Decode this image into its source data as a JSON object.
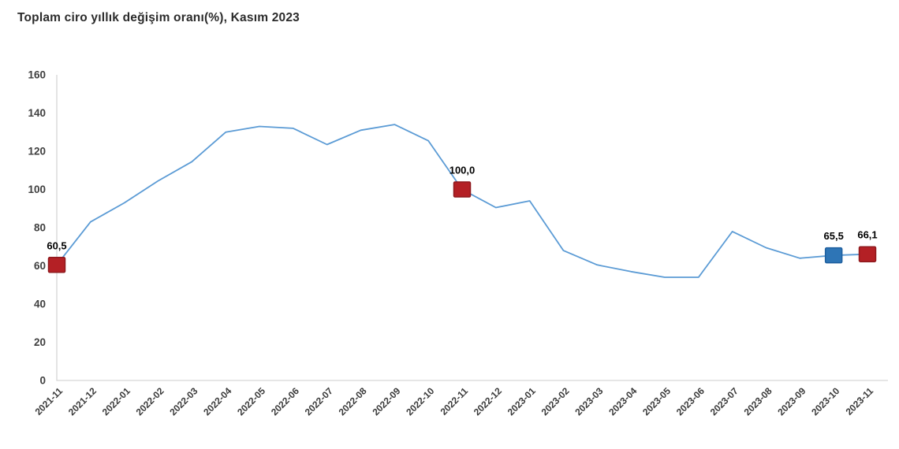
{
  "title": "Toplam ciro yıllık değişim oranı(%), Kasım 2023",
  "chart_data": {
    "type": "line",
    "title": "Toplam ciro yıllık değişim oranı(%), Kasım 2023",
    "xlabel": "",
    "ylabel": "",
    "x": [
      "2021-11",
      "2021-12",
      "2022-01",
      "2022-02",
      "2022-03",
      "2022-04",
      "2022-05",
      "2022-06",
      "2022-07",
      "2022-08",
      "2022-09",
      "2022-10",
      "2022-11",
      "2022-12",
      "2023-01",
      "2023-02",
      "2023-03",
      "2023-04",
      "2023-05",
      "2023-06",
      "2023-07",
      "2023-08",
      "2023-09",
      "2023-10",
      "2023-11"
    ],
    "values": [
      60.5,
      83.0,
      93.0,
      104.5,
      114.5,
      130.0,
      133.0,
      132.0,
      123.5,
      131.0,
      134.0,
      125.5,
      100.0,
      90.5,
      94.0,
      68.0,
      60.5,
      57.0,
      54.0,
      54.0,
      78.0,
      69.5,
      64.0,
      65.5,
      66.1
    ],
    "ylim": [
      0,
      160
    ],
    "yticks": [
      0,
      20,
      40,
      60,
      80,
      100,
      120,
      140,
      160
    ],
    "grid": false,
    "legend": "none",
    "line_color": "#5b9bd5",
    "axis_color": "#d6d6d6",
    "highlights": [
      {
        "x": "2021-11",
        "index": 0,
        "value": 60.5,
        "label": "60,5",
        "marker_color": "#b42025",
        "marker_border": "#8e191d"
      },
      {
        "x": "2022-11",
        "index": 12,
        "value": 100.0,
        "label": "100,0",
        "marker_color": "#b42025",
        "marker_border": "#8e191d"
      },
      {
        "x": "2023-10",
        "index": 23,
        "value": 65.5,
        "label": "65,5",
        "marker_color": "#2e75b6",
        "marker_border": "#1f5f9e"
      },
      {
        "x": "2023-11",
        "index": 24,
        "value": 66.1,
        "label": "66,1",
        "marker_color": "#b42025",
        "marker_border": "#8e191d"
      }
    ]
  }
}
